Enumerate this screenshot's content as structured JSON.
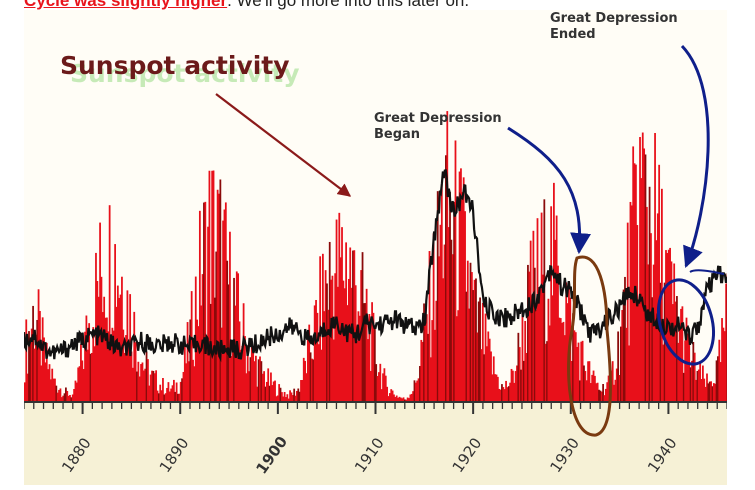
{
  "page": {
    "top_text_emphasis": "Cycle was slightly higher",
    "top_text_rest": ". We'll go more into this later on."
  },
  "colors": {
    "sunspot": "#e8101a",
    "sunspot_dark": "#8a0a0a",
    "market": "#111111",
    "axis_band": "#f6f1d6",
    "title": "#6b1a1a",
    "arrow_title": "#8b1a1a",
    "arrow_blue": "#0f1f8a",
    "loop_brown": "#7a3a10"
  },
  "chart_data": {
    "type": "line",
    "x_axis": {
      "min": 1874,
      "max": 1946,
      "ticks": [
        1880,
        1890,
        1900,
        1910,
        1920,
        1930,
        1940
      ],
      "bold_tick": 1900
    },
    "y_axis": {
      "min": 0,
      "max": 400,
      "ticklabels": false
    },
    "grid": false,
    "series": [
      {
        "name": "Sunspot activity",
        "color": "red",
        "style": "spiky-bars",
        "points": [
          [
            1874,
            60
          ],
          [
            1875,
            110
          ],
          [
            1876,
            55
          ],
          [
            1877,
            25
          ],
          [
            1878,
            12
          ],
          [
            1879,
            8
          ],
          [
            1880,
            60
          ],
          [
            1881,
            120
          ],
          [
            1882,
            165
          ],
          [
            1883,
            180
          ],
          [
            1884,
            150
          ],
          [
            1885,
            95
          ],
          [
            1886,
            50
          ],
          [
            1887,
            30
          ],
          [
            1888,
            20
          ],
          [
            1889,
            15
          ],
          [
            1890,
            25
          ],
          [
            1891,
            80
          ],
          [
            1892,
            160
          ],
          [
            1893,
            210
          ],
          [
            1894,
            190
          ],
          [
            1895,
            140
          ],
          [
            1896,
            95
          ],
          [
            1897,
            60
          ],
          [
            1898,
            40
          ],
          [
            1899,
            25
          ],
          [
            1900,
            15
          ],
          [
            1901,
            8
          ],
          [
            1902,
            15
          ],
          [
            1903,
            55
          ],
          [
            1904,
            100
          ],
          [
            1905,
            150
          ],
          [
            1906,
            160
          ],
          [
            1907,
            175
          ],
          [
            1908,
            140
          ],
          [
            1909,
            105
          ],
          [
            1910,
            55
          ],
          [
            1911,
            20
          ],
          [
            1912,
            8
          ],
          [
            1913,
            3
          ],
          [
            1914,
            20
          ],
          [
            1915,
            90
          ],
          [
            1916,
            150
          ],
          [
            1917,
            240
          ],
          [
            1918,
            210
          ],
          [
            1919,
            180
          ],
          [
            1920,
            110
          ],
          [
            1921,
            75
          ],
          [
            1922,
            40
          ],
          [
            1923,
            15
          ],
          [
            1924,
            30
          ],
          [
            1925,
            85
          ],
          [
            1926,
            140
          ],
          [
            1927,
            160
          ],
          [
            1928,
            175
          ],
          [
            1929,
            150
          ],
          [
            1930,
            90
          ],
          [
            1931,
            55
          ],
          [
            1932,
            30
          ],
          [
            1933,
            15
          ],
          [
            1934,
            25
          ],
          [
            1935,
            80
          ],
          [
            1936,
            170
          ],
          [
            1937,
            260
          ],
          [
            1938,
            240
          ],
          [
            1939,
            190
          ],
          [
            1940,
            135
          ],
          [
            1941,
            100
          ],
          [
            1942,
            60
          ],
          [
            1943,
            35
          ],
          [
            1944,
            20
          ],
          [
            1945,
            40
          ],
          [
            1946,
            110
          ]
        ]
      },
      {
        "name": "",
        "color": "black",
        "style": "line",
        "points": [
          [
            1874,
            65
          ],
          [
            1875,
            72
          ],
          [
            1876,
            58
          ],
          [
            1877,
            52
          ],
          [
            1878,
            55
          ],
          [
            1879,
            62
          ],
          [
            1880,
            66
          ],
          [
            1881,
            72
          ],
          [
            1882,
            70
          ],
          [
            1883,
            62
          ],
          [
            1884,
            55
          ],
          [
            1885,
            58
          ],
          [
            1886,
            65
          ],
          [
            1887,
            62
          ],
          [
            1888,
            60
          ],
          [
            1889,
            64
          ],
          [
            1890,
            62
          ],
          [
            1891,
            58
          ],
          [
            1892,
            64
          ],
          [
            1893,
            58
          ],
          [
            1894,
            55
          ],
          [
            1895,
            58
          ],
          [
            1896,
            55
          ],
          [
            1897,
            60
          ],
          [
            1898,
            62
          ],
          [
            1899,
            70
          ],
          [
            1900,
            72
          ],
          [
            1901,
            80
          ],
          [
            1902,
            78
          ],
          [
            1903,
            66
          ],
          [
            1904,
            68
          ],
          [
            1905,
            80
          ],
          [
            1906,
            85
          ],
          [
            1907,
            75
          ],
          [
            1908,
            72
          ],
          [
            1909,
            84
          ],
          [
            1910,
            82
          ],
          [
            1911,
            85
          ],
          [
            1912,
            88
          ],
          [
            1913,
            82
          ],
          [
            1914,
            78
          ],
          [
            1915,
            85
          ],
          [
            1916,
            175
          ],
          [
            1917,
            250
          ],
          [
            1918,
            200
          ],
          [
            1919,
            225
          ],
          [
            1920,
            205
          ],
          [
            1921,
            105
          ],
          [
            1922,
            95
          ],
          [
            1923,
            90
          ],
          [
            1924,
            92
          ],
          [
            1925,
            100
          ],
          [
            1926,
            105
          ],
          [
            1927,
            120
          ],
          [
            1928,
            145
          ],
          [
            1929,
            125
          ],
          [
            1930,
            118
          ],
          [
            1931,
            98
          ],
          [
            1932,
            72
          ],
          [
            1933,
            78
          ],
          [
            1934,
            90
          ],
          [
            1935,
            100
          ],
          [
            1936,
            118
          ],
          [
            1937,
            112
          ],
          [
            1938,
            92
          ],
          [
            1939,
            88
          ],
          [
            1940,
            80
          ],
          [
            1941,
            82
          ],
          [
            1942,
            70
          ],
          [
            1943,
            80
          ],
          [
            1944,
            120
          ],
          [
            1945,
            135
          ],
          [
            1946,
            135
          ]
        ]
      }
    ],
    "annotations": {
      "title": "Sunspot activity",
      "gd_began_line1": "Great Depression",
      "gd_began_line2": "Began",
      "gd_ended_line1": "Great Depression",
      "gd_ended_line2": "Ended"
    }
  }
}
